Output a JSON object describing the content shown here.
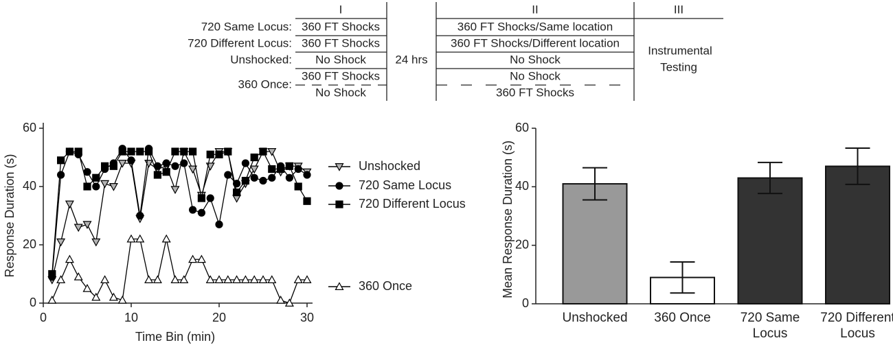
{
  "schedule": {
    "phases": [
      "I",
      "II",
      "III"
    ],
    "groups": [
      {
        "label": "720 Same Locus:",
        "phase1": [
          "360 FT Shocks"
        ],
        "phase2": [
          "360 FT Shocks/Same location"
        ]
      },
      {
        "label": "720 Different Locus:",
        "phase1": [
          "360 FT Shocks"
        ],
        "phase2": [
          "360 FT Shocks/Different location"
        ]
      },
      {
        "label": "Unshocked:",
        "phase1": [
          "No Shock"
        ],
        "phase2": [
          "No Shock"
        ]
      },
      {
        "label": "360 Once:",
        "phase1": [
          "360 FT Shocks",
          "No Shock"
        ],
        "phase2": [
          "No Shock",
          "360 FT Shocks"
        ]
      }
    ],
    "interval": "24 hrs",
    "testing": [
      "Instrumental",
      "Testing"
    ]
  },
  "chart_data": [
    {
      "type": "line",
      "xlabel": "Time Bin (min)",
      "ylabel": "Response Duration (s)",
      "x": [
        1,
        2,
        3,
        4,
        5,
        6,
        7,
        8,
        9,
        10,
        11,
        12,
        13,
        14,
        15,
        16,
        17,
        18,
        19,
        20,
        21,
        22,
        23,
        24,
        25,
        26,
        27,
        28,
        29,
        30
      ],
      "xlim": [
        0,
        30
      ],
      "xticks": [
        0,
        10,
        20,
        30
      ],
      "ylim": [
        0,
        60
      ],
      "yticks": [
        0,
        20,
        40,
        60
      ],
      "series": [
        {
          "name": "Unshocked",
          "color": "#b3b3b3",
          "marker": "triangle-down",
          "values": [
            8,
            21,
            34,
            26,
            27,
            21,
            41,
            40,
            48,
            48,
            29,
            48,
            46,
            47,
            39,
            52,
            46,
            37,
            47,
            52,
            52,
            36,
            41,
            46,
            52,
            52,
            45,
            47,
            47,
            45
          ]
        },
        {
          "name": "720 Same Locus",
          "color": "#000000",
          "marker": "circle",
          "values": [
            9,
            44,
            52,
            51,
            45,
            40,
            46,
            48,
            53,
            49,
            30,
            53,
            47,
            48,
            47,
            48,
            32,
            31,
            36,
            27,
            44,
            41,
            48,
            43,
            42,
            43,
            47,
            43,
            46,
            44
          ]
        },
        {
          "name": "720 Different Locus",
          "color": "#000000",
          "marker": "square",
          "values": [
            10,
            49,
            52,
            52,
            40,
            43,
            47,
            47,
            52,
            52,
            52,
            52,
            44,
            45,
            52,
            52,
            52,
            36,
            51,
            51,
            52,
            38,
            42,
            50,
            52,
            46,
            46,
            47,
            40,
            35
          ]
        },
        {
          "name": "360 Once",
          "color": "#ffffff",
          "marker": "triangle-up",
          "values": [
            1,
            8,
            15,
            9,
            5,
            2,
            8,
            2,
            1,
            22,
            22,
            8,
            8,
            22,
            8,
            8,
            15,
            15,
            8,
            8,
            8,
            8,
            8,
            8,
            8,
            8,
            1,
            0,
            8,
            8
          ]
        }
      ]
    },
    {
      "type": "bar",
      "ylabel": "Mean Response Duration (s)",
      "categories": [
        "Unshocked",
        "360 Once",
        "720 Same Locus",
        "720 Different Locus"
      ],
      "values": [
        41,
        9,
        43,
        47
      ],
      "errors": [
        5.5,
        5.3,
        5.3,
        6.2
      ],
      "colors": [
        "#999999",
        "#ffffff",
        "#333333",
        "#333333"
      ],
      "ylim": [
        0,
        60
      ],
      "yticks": [
        0,
        20,
        40,
        60
      ]
    }
  ]
}
